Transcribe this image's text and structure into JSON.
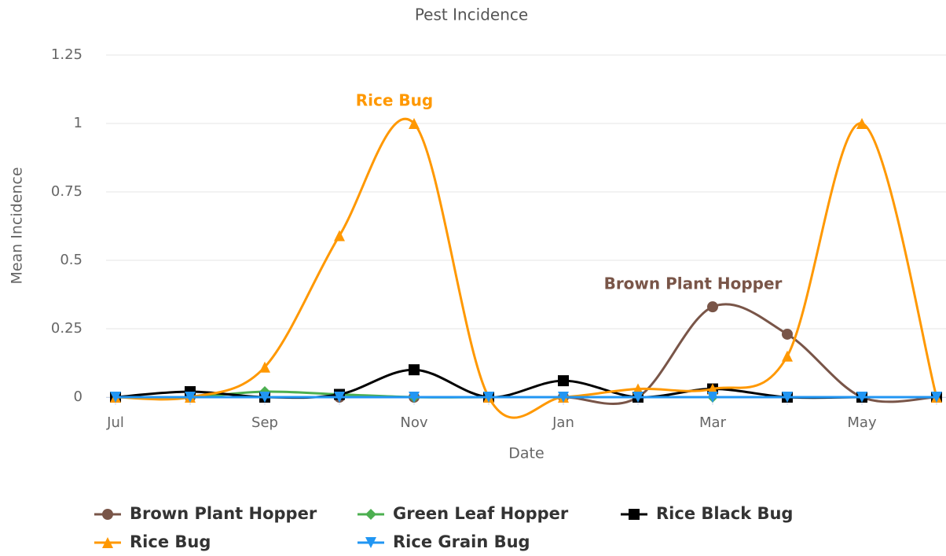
{
  "chart_data": {
    "type": "line",
    "title": "Pest Incidence",
    "x_label": "Date",
    "y_label": "Mean Incidence",
    "categories": [
      "Jul",
      null,
      "Sep",
      null,
      "Nov",
      null,
      "Jan",
      null,
      "Mar",
      null,
      "May",
      null
    ],
    "ylim": [
      0,
      1.25
    ],
    "yticks": [
      0,
      0.25,
      0.5,
      0.75,
      1,
      1.25
    ],
    "grid": true,
    "legend": "bottom",
    "series": [
      {
        "name": "Brown Plant Hopper",
        "color": "#795548",
        "marker": "circle",
        "values": [
          0,
          0,
          0,
          0,
          0,
          0,
          0,
          0,
          0.33,
          0.23,
          0,
          0
        ]
      },
      {
        "name": "Green Leaf Hopper",
        "color": "#4caf50",
        "marker": "diamond",
        "values": [
          0,
          0,
          0.02,
          0.01,
          0,
          0,
          0,
          0,
          0,
          0,
          0,
          0
        ]
      },
      {
        "name": "Rice Black Bug",
        "color": "#000000",
        "marker": "square",
        "values": [
          0,
          0.02,
          0,
          0.01,
          0.1,
          0,
          0.06,
          0,
          0.03,
          0,
          0,
          0
        ]
      },
      {
        "name": "Rice Bug",
        "color": "#ff9800",
        "marker": "triangle",
        "values": [
          0,
          0,
          0.11,
          0.59,
          1,
          0,
          0,
          0.03,
          0.03,
          0.15,
          1,
          0
        ]
      },
      {
        "name": "Rice Grain Bug",
        "color": "#2196f3",
        "marker": "triangle-down",
        "values": [
          0,
          0,
          0,
          0,
          0,
          0,
          0,
          0,
          0,
          0,
          0,
          0
        ]
      }
    ],
    "annotations": [
      {
        "text": "Rice Bug",
        "color": "#ff9800"
      },
      {
        "text": "Brown Plant Hopper",
        "color": "#795548"
      }
    ]
  }
}
